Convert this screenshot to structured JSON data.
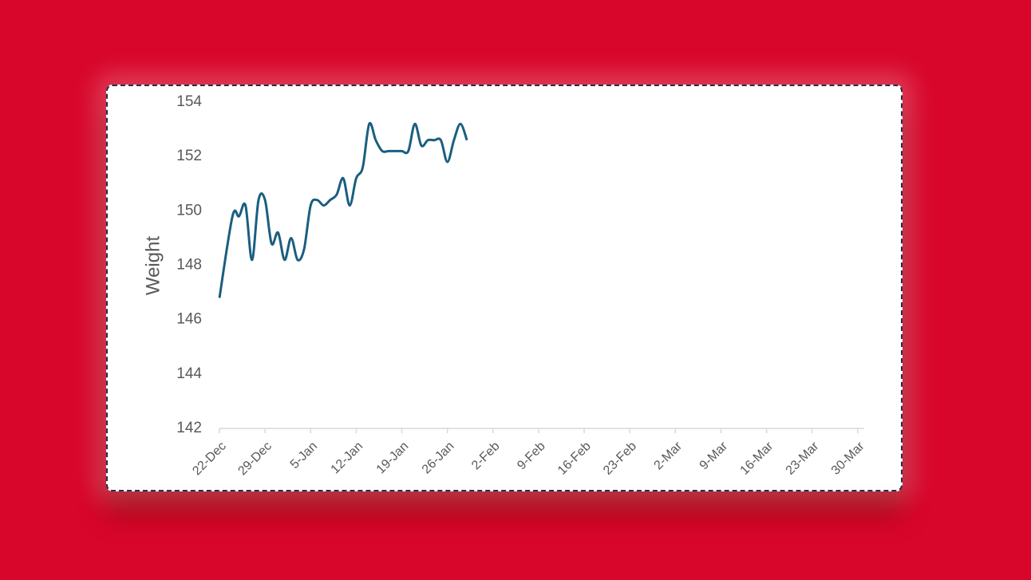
{
  "chart_data": {
    "type": "line",
    "y_label": "Weight",
    "x": [
      "22-Dec",
      "24-Dec",
      "25-Dec",
      "26-Dec",
      "27-Dec",
      "28-Dec",
      "29-Dec",
      "30-Dec",
      "31-Dec",
      "1-Jan",
      "2-Jan",
      "3-Jan",
      "4-Jan",
      "5-Jan",
      "6-Jan",
      "7-Jan",
      "8-Jan",
      "9-Jan",
      "10-Jan",
      "11-Jan",
      "12-Jan",
      "13-Jan",
      "14-Jan",
      "15-Jan",
      "16-Jan",
      "17-Jan",
      "18-Jan",
      "19-Jan",
      "20-Jan",
      "21-Jan",
      "22-Jan",
      "23-Jan",
      "24-Jan",
      "25-Jan",
      "26-Jan",
      "27-Jan",
      "28-Jan",
      "29-Jan"
    ],
    "series": [
      {
        "color": "#1b5e80",
        "values": [
          146.8,
          149.8,
          149.8,
          150.2,
          148.2,
          150.4,
          150.4,
          148.8,
          149.2,
          148.2,
          149.0,
          148.2,
          148.6,
          150.2,
          150.4,
          150.2,
          150.4,
          150.6,
          151.2,
          150.2,
          151.2,
          151.6,
          153.2,
          152.6,
          152.2,
          152.2,
          152.2,
          152.2,
          152.2,
          153.2,
          152.4,
          152.6,
          152.6,
          152.6,
          151.8,
          152.6,
          153.2,
          152.6
        ]
      }
    ],
    "xlim": [
      "22-Dec",
      "31-Mar"
    ],
    "xticks": [
      "22-Dec",
      "29-Dec",
      "5-Jan",
      "12-Jan",
      "19-Jan",
      "26-Jan",
      "2-Feb",
      "9-Feb",
      "16-Feb",
      "23-Feb",
      "2-Mar",
      "9-Mar",
      "16-Mar",
      "23-Mar",
      "30-Mar"
    ],
    "ylim": [
      142,
      154
    ],
    "yticks": [
      142,
      144,
      146,
      148,
      150,
      152,
      154
    ],
    "smooth": true,
    "grid": false
  }
}
